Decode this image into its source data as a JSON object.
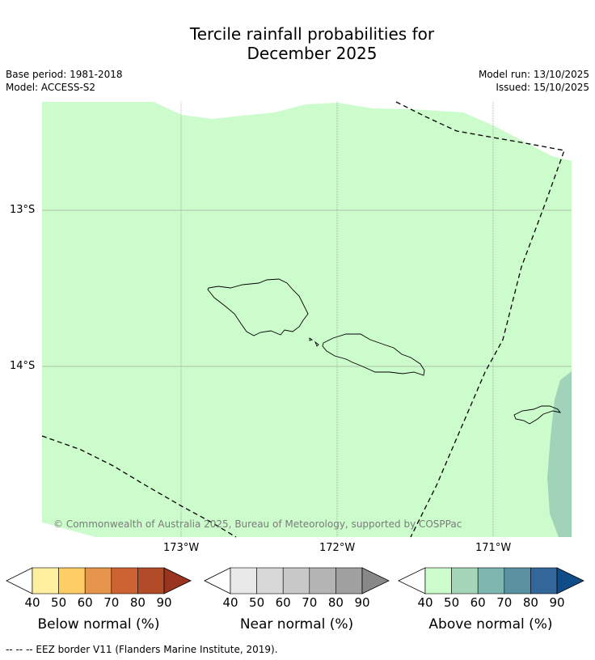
{
  "title": {
    "line1": "Tercile rainfall probabilities for",
    "line2": "December 2025"
  },
  "meta": {
    "base_period": "Base period: 1981-2018",
    "model": "Model: ACCESS-S2",
    "model_run": "Model run: 13/10/2025",
    "issued": "Issued: 15/10/2025"
  },
  "map": {
    "latitude_labels": [
      "13°S",
      "14°S"
    ],
    "longitude_labels": [
      "173°W",
      "172°W",
      "171°W"
    ],
    "copyright": "© Commonwealth of Australia 2025, Bureau of Meteorology, supported by COSPPac",
    "colors": {
      "above_40_50": "#ccfccc",
      "above_50_60": "#a0d3ba",
      "gridline": "#888888",
      "coastline": "#000000",
      "eez_border": "#000000"
    }
  },
  "colorbars": [
    {
      "title": "Below normal (%)",
      "ticks": [
        "40",
        "50",
        "60",
        "70",
        "80",
        "90"
      ],
      "colors": [
        "#fff0a0",
        "#ffcd66",
        "#e6964c",
        "#cd6232",
        "#b24b28",
        "#993420"
      ]
    },
    {
      "title": "Near normal (%)",
      "ticks": [
        "40",
        "50",
        "60",
        "70",
        "80",
        "90"
      ],
      "colors": [
        "#e8e8e8",
        "#d8d8d8",
        "#c8c8c8",
        "#b4b4b4",
        "#a0a0a0",
        "#888888"
      ]
    },
    {
      "title": "Above normal (%)",
      "ticks": [
        "40",
        "50",
        "60",
        "70",
        "80",
        "90"
      ],
      "colors": [
        "#ccfccc",
        "#a6d6ba",
        "#80b6b0",
        "#5b92a2",
        "#336699",
        "#0f4c88"
      ]
    }
  ],
  "footer": {
    "eez_legend": "--  --  -- EEZ border V11 (Flanders Marine Institute, 2019)."
  }
}
